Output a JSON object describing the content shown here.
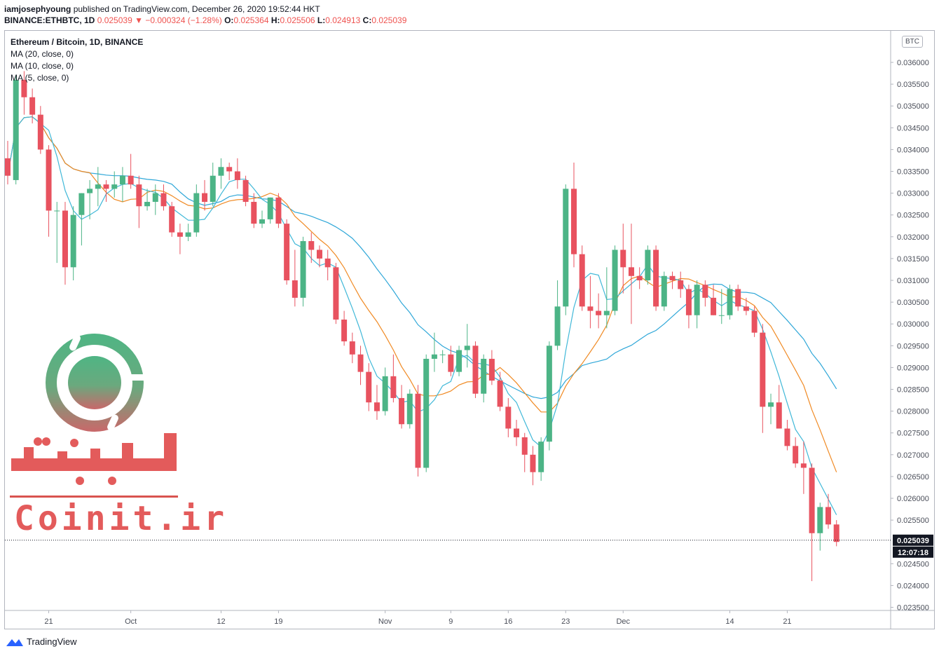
{
  "header": {
    "author": "iamjosephyoung",
    "published_text": "published on TradingView.com, December 26, 2020 19:52:44 HKT",
    "symbol_line_prefix": "BINANCE:ETHBTC, 1D",
    "last": "0.025039",
    "down_arrow": "▼",
    "change": "−0.000324 (−1.28%)",
    "o_label": "O:",
    "o_value": "0.025364",
    "h_label": "H:",
    "h_value": "0.025506",
    "l_label": "L:",
    "l_value": "0.024913",
    "c_label": "C:",
    "c_value": "0.025039"
  },
  "legend": {
    "title": "Ethereum / Bitcoin, 1D, BINANCE",
    "ma20": "MA (20, close, 0)",
    "ma10": "MA (10, close, 0)",
    "ma5": "MA (5, close, 0)"
  },
  "currency_badge": "BTC",
  "footer": {
    "brand": "TradingView"
  },
  "watermark": {
    "text_fa": "کوینیت",
    "text_en": "Coinit.ir"
  },
  "colors": {
    "up": "#4cb486",
    "down": "#e8525f",
    "ma20": "#2fa7d8",
    "ma10": "#f08a24",
    "ma5": "#40b8d8"
  },
  "chart_data": {
    "type": "candlestick",
    "symbol": "ETHBTC",
    "interval": "1D",
    "ylim": [
      0.0233,
      0.0366
    ],
    "y_ticks": [
      "0.036000",
      "0.035500",
      "0.035000",
      "0.034500",
      "0.034000",
      "0.033500",
      "0.033000",
      "0.032500",
      "0.032000",
      "0.031500",
      "0.031000",
      "0.030500",
      "0.030000",
      "0.029500",
      "0.029000",
      "0.028500",
      "0.028000",
      "0.027500",
      "0.027000",
      "0.026500",
      "0.026000",
      "0.025500",
      "0.024500",
      "0.024000",
      "0.023500"
    ],
    "x_ticks": [
      {
        "label": "21",
        "index": 5
      },
      {
        "label": "Oct",
        "index": 15
      },
      {
        "label": "12",
        "index": 26
      },
      {
        "label": "19",
        "index": 33
      },
      {
        "label": "Nov",
        "index": 46
      },
      {
        "label": "9",
        "index": 54
      },
      {
        "label": "16",
        "index": 61
      },
      {
        "label": "23",
        "index": 68
      },
      {
        "label": "Dec",
        "index": 75
      },
      {
        "label": "14",
        "index": 88
      },
      {
        "label": "21",
        "index": 95
      }
    ],
    "last_price_label": "0.025039",
    "countdown_label": "12:07:18",
    "candles": [
      [
        0.0338,
        0.0342,
        0.0332,
        0.0334
      ],
      [
        0.0333,
        0.0357,
        0.0332,
        0.0356
      ],
      [
        0.0356,
        0.0358,
        0.0348,
        0.0352
      ],
      [
        0.0352,
        0.0354,
        0.0346,
        0.0348
      ],
      [
        0.0348,
        0.035,
        0.0339,
        0.034
      ],
      [
        0.034,
        0.0341,
        0.032,
        0.0326
      ],
      [
        0.0326,
        0.0328,
        0.0314,
        0.0326
      ],
      [
        0.0326,
        0.0328,
        0.0309,
        0.0313
      ],
      [
        0.0313,
        0.0327,
        0.031,
        0.0325
      ],
      [
        0.0325,
        0.033,
        0.0318,
        0.033
      ],
      [
        0.033,
        0.0333,
        0.0324,
        0.0331
      ],
      [
        0.0331,
        0.0336,
        0.0327,
        0.0332
      ],
      [
        0.0332,
        0.0333,
        0.0328,
        0.0331
      ],
      [
        0.0331,
        0.0335,
        0.0329,
        0.0332
      ],
      [
        0.0332,
        0.0336,
        0.0328,
        0.0334
      ],
      [
        0.0334,
        0.0339,
        0.0331,
        0.0332
      ],
      [
        0.0332,
        0.0334,
        0.0322,
        0.0327
      ],
      [
        0.0327,
        0.0331,
        0.0326,
        0.0328
      ],
      [
        0.0328,
        0.0332,
        0.0325,
        0.033
      ],
      [
        0.033,
        0.0332,
        0.0326,
        0.0327
      ],
      [
        0.0327,
        0.0328,
        0.032,
        0.0321
      ],
      [
        0.0321,
        0.0323,
        0.0316,
        0.032
      ],
      [
        0.032,
        0.0323,
        0.0319,
        0.0321
      ],
      [
        0.0321,
        0.0332,
        0.032,
        0.033
      ],
      [
        0.033,
        0.0333,
        0.0326,
        0.0328
      ],
      [
        0.0328,
        0.0337,
        0.0327,
        0.0334
      ],
      [
        0.0334,
        0.0338,
        0.0331,
        0.0336
      ],
      [
        0.0336,
        0.0337,
        0.0333,
        0.0335
      ],
      [
        0.0335,
        0.0338,
        0.0331,
        0.0333
      ],
      [
        0.0333,
        0.0334,
        0.0327,
        0.0328
      ],
      [
        0.0328,
        0.033,
        0.0322,
        0.0323
      ],
      [
        0.0323,
        0.0326,
        0.0322,
        0.0324
      ],
      [
        0.0324,
        0.0329,
        0.0323,
        0.0329
      ],
      [
        0.0329,
        0.033,
        0.0322,
        0.0323
      ],
      [
        0.0323,
        0.0324,
        0.0309,
        0.031
      ],
      [
        0.031,
        0.0317,
        0.0304,
        0.0306
      ],
      [
        0.0306,
        0.032,
        0.0304,
        0.0319
      ],
      [
        0.0319,
        0.0321,
        0.0314,
        0.0317
      ],
      [
        0.0317,
        0.0318,
        0.0313,
        0.0315
      ],
      [
        0.0315,
        0.0317,
        0.031,
        0.0313
      ],
      [
        0.0313,
        0.0314,
        0.03,
        0.0301
      ],
      [
        0.0301,
        0.0303,
        0.0295,
        0.0296
      ],
      [
        0.0296,
        0.0298,
        0.0291,
        0.0293
      ],
      [
        0.0293,
        0.0295,
        0.0286,
        0.0289
      ],
      [
        0.0289,
        0.0291,
        0.028,
        0.0282
      ],
      [
        0.0282,
        0.0286,
        0.0278,
        0.028
      ],
      [
        0.028,
        0.029,
        0.0279,
        0.0288
      ],
      [
        0.0288,
        0.0293,
        0.0282,
        0.0283
      ],
      [
        0.0283,
        0.0286,
        0.0276,
        0.0277
      ],
      [
        0.0277,
        0.0285,
        0.0276,
        0.0284
      ],
      [
        0.0284,
        0.0286,
        0.0265,
        0.0267
      ],
      [
        0.0267,
        0.0293,
        0.0266,
        0.0292
      ],
      [
        0.0292,
        0.0298,
        0.0289,
        0.0293
      ],
      [
        0.0293,
        0.0294,
        0.0291,
        0.0293
      ],
      [
        0.0293,
        0.0295,
        0.0288,
        0.0289
      ],
      [
        0.0289,
        0.0295,
        0.0288,
        0.0294
      ],
      [
        0.0294,
        0.03,
        0.029,
        0.0295
      ],
      [
        0.0295,
        0.0296,
        0.0283,
        0.0284
      ],
      [
        0.0284,
        0.0293,
        0.0282,
        0.0292
      ],
      [
        0.0292,
        0.0294,
        0.0286,
        0.0287
      ],
      [
        0.0287,
        0.0289,
        0.028,
        0.0281
      ],
      [
        0.0281,
        0.0283,
        0.0274,
        0.0276
      ],
      [
        0.0276,
        0.0278,
        0.0272,
        0.0274
      ],
      [
        0.0274,
        0.0275,
        0.0266,
        0.027
      ],
      [
        0.027,
        0.0272,
        0.0263,
        0.0266
      ],
      [
        0.0266,
        0.0274,
        0.0264,
        0.0273
      ],
      [
        0.0273,
        0.0296,
        0.0271,
        0.0295
      ],
      [
        0.0295,
        0.031,
        0.0294,
        0.0304
      ],
      [
        0.0304,
        0.0332,
        0.0302,
        0.0331
      ],
      [
        0.0331,
        0.0337,
        0.0313,
        0.0316
      ],
      [
        0.0316,
        0.0318,
        0.0303,
        0.0304
      ],
      [
        0.0304,
        0.0311,
        0.0299,
        0.0303
      ],
      [
        0.0303,
        0.0307,
        0.0299,
        0.0302
      ],
      [
        0.0302,
        0.0313,
        0.0299,
        0.0303
      ],
      [
        0.0303,
        0.0318,
        0.0302,
        0.0317
      ],
      [
        0.0317,
        0.0323,
        0.0307,
        0.0313
      ],
      [
        0.0313,
        0.0323,
        0.03,
        0.0311
      ],
      [
        0.0311,
        0.0313,
        0.0308,
        0.031
      ],
      [
        0.031,
        0.0318,
        0.0309,
        0.0317
      ],
      [
        0.0317,
        0.0318,
        0.0303,
        0.0304
      ],
      [
        0.0304,
        0.0312,
        0.0303,
        0.0311
      ],
      [
        0.0311,
        0.0312,
        0.0308,
        0.031
      ],
      [
        0.031,
        0.0312,
        0.0306,
        0.0308
      ],
      [
        0.0308,
        0.0309,
        0.0299,
        0.0302
      ],
      [
        0.0302,
        0.031,
        0.0299,
        0.0309
      ],
      [
        0.0309,
        0.031,
        0.0304,
        0.0306
      ],
      [
        0.0306,
        0.0309,
        0.0302,
        0.0302
      ],
      [
        0.0302,
        0.0308,
        0.03,
        0.0302
      ],
      [
        0.0302,
        0.0309,
        0.0301,
        0.0308
      ],
      [
        0.0308,
        0.0309,
        0.0303,
        0.0304
      ],
      [
        0.0304,
        0.0306,
        0.0302,
        0.0303
      ],
      [
        0.0303,
        0.0304,
        0.0297,
        0.0298
      ],
      [
        0.0298,
        0.03,
        0.0275,
        0.0281
      ],
      [
        0.0281,
        0.0284,
        0.0277,
        0.0282
      ],
      [
        0.0282,
        0.0286,
        0.0276,
        0.0276
      ],
      [
        0.0276,
        0.0278,
        0.0271,
        0.0272
      ],
      [
        0.0272,
        0.0274,
        0.0267,
        0.0268
      ],
      [
        0.0268,
        0.0273,
        0.0261,
        0.0267
      ],
      [
        0.0267,
        0.0268,
        0.0241,
        0.0252
      ],
      [
        0.0252,
        0.0259,
        0.0248,
        0.0258
      ],
      [
        0.0258,
        0.0261,
        0.0253,
        0.0254
      ],
      [
        0.0254,
        0.0255,
        0.0249,
        0.025
      ]
    ]
  }
}
